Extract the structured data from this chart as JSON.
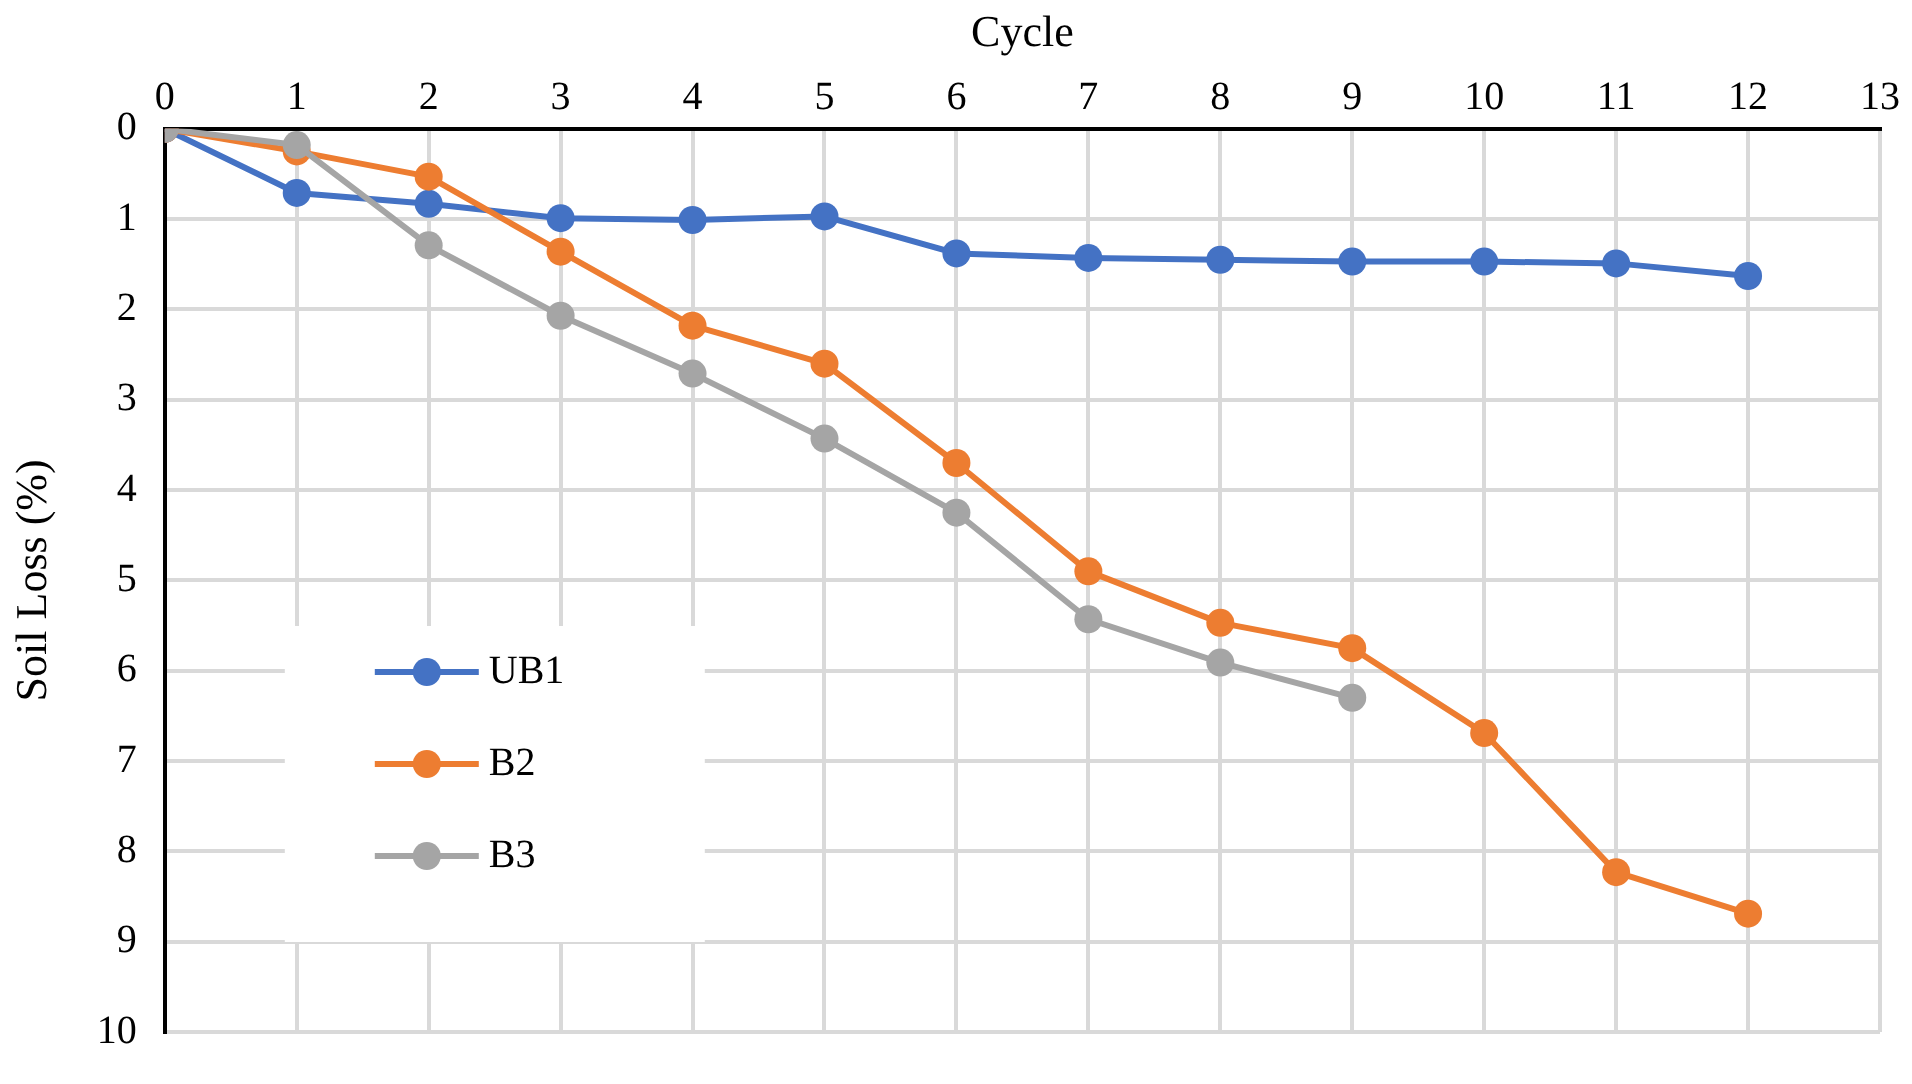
{
  "chart_data": {
    "type": "line",
    "xlabel": "Cycle",
    "ylabel": "Soil Loss (%)",
    "x": [
      0,
      1,
      2,
      3,
      4,
      5,
      6,
      7,
      8,
      9,
      10,
      11,
      12
    ],
    "xlim": [
      0,
      13
    ],
    "xticks": [
      0,
      1,
      2,
      3,
      4,
      5,
      6,
      7,
      8,
      9,
      10,
      11,
      12,
      13
    ],
    "ylim": [
      10,
      0
    ],
    "yticks": [
      0,
      1,
      2,
      3,
      4,
      5,
      6,
      7,
      8,
      9,
      10
    ],
    "grid": true,
    "legend": "bottom left",
    "marker": "circle",
    "line_style": "solid",
    "series": [
      {
        "name": "UB1",
        "color": "#4472c4",
        "values": [
          0,
          0.71,
          0.83,
          0.99,
          1.01,
          0.97,
          1.38,
          1.43,
          1.45,
          1.47,
          1.47,
          1.49,
          1.63
        ]
      },
      {
        "name": "B2",
        "color": "#ed7d31",
        "values": [
          0,
          0.25,
          0.53,
          1.36,
          2.18,
          2.6,
          3.7,
          4.9,
          5.47,
          5.75,
          6.69,
          8.23,
          8.69
        ]
      },
      {
        "name": "B3",
        "color": "#a5a5a5",
        "values": [
          0,
          0.18,
          1.29,
          2.07,
          2.71,
          3.43,
          4.25,
          5.43,
          5.91,
          6.3,
          null,
          null,
          null
        ]
      }
    ]
  }
}
